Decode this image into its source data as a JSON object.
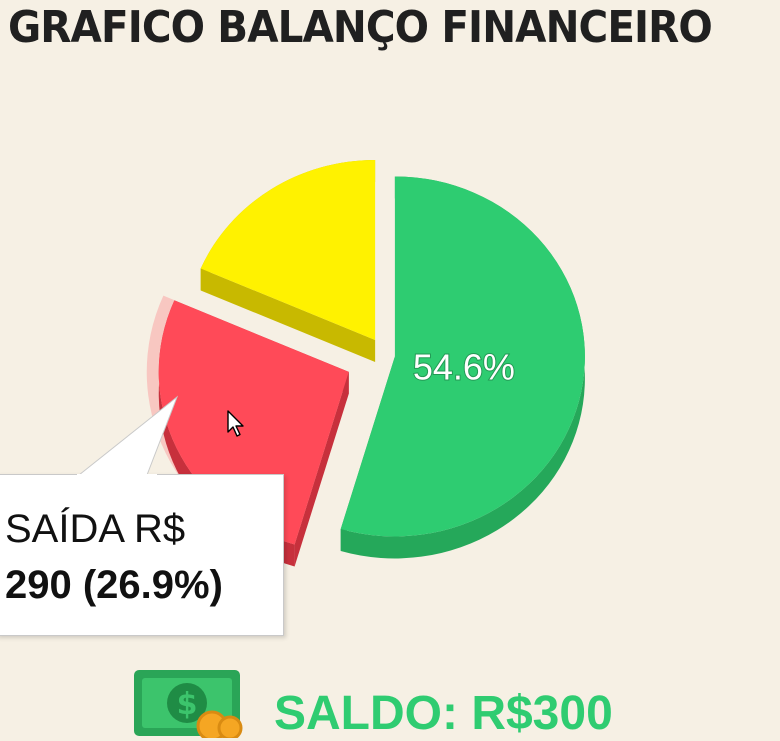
{
  "chart_data": {
    "type": "pie",
    "title": "GRAFICO BALANÇO FINANCEIRO",
    "slices": [
      {
        "name": "",
        "percent": 54.6,
        "color": "#2ecc71",
        "label": "54.6%"
      },
      {
        "name": "SAÍDA",
        "value": 290,
        "percent": 26.9,
        "color": "#ff4a58"
      },
      {
        "name": "",
        "percent": 18.5,
        "color": "#fff200"
      }
    ],
    "tooltip": {
      "line1": "SAÍDA R$",
      "line2": "290 (26.9%)"
    }
  },
  "summary": {
    "saldo_text": "SALDO: R$300",
    "icon": "money-icon"
  },
  "colors": {
    "background": "#f6f0e4",
    "green": "#2ecc71",
    "red": "#ff4a58",
    "yellow": "#fff200",
    "saldo_text": "#2fcc71"
  }
}
